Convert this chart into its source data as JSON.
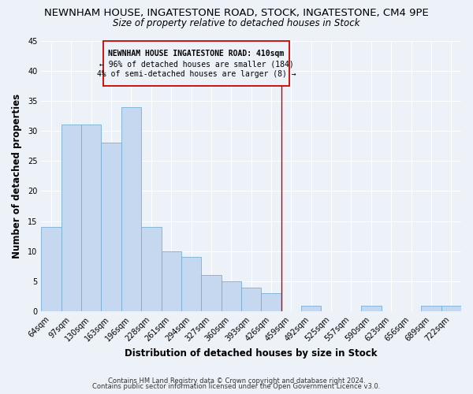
{
  "title": "NEWNHAM HOUSE, INGATESTONE ROAD, STOCK, INGATESTONE, CM4 9PE",
  "subtitle": "Size of property relative to detached houses in Stock",
  "xlabel": "Distribution of detached houses by size in Stock",
  "ylabel": "Number of detached properties",
  "categories": [
    "64sqm",
    "97sqm",
    "130sqm",
    "163sqm",
    "196sqm",
    "228sqm",
    "261sqm",
    "294sqm",
    "327sqm",
    "360sqm",
    "393sqm",
    "426sqm",
    "459sqm",
    "492sqm",
    "525sqm",
    "557sqm",
    "590sqm",
    "623sqm",
    "656sqm",
    "689sqm",
    "722sqm"
  ],
  "values": [
    14,
    31,
    31,
    28,
    34,
    14,
    10,
    9,
    6,
    5,
    4,
    3,
    0,
    1,
    0,
    0,
    1,
    0,
    0,
    1,
    1
  ],
  "bar_color": "#c5d8f0",
  "bar_edge_color": "#7aafd4",
  "vline_x_index": 11.5,
  "vline_color": "#cc0000",
  "annotation_line1": "NEWNHAM HOUSE INGATESTONE ROAD: 410sqm",
  "annotation_line2": "← 96% of detached houses are smaller (184)",
  "annotation_line3": "4% of semi-detached houses are larger (8) →",
  "annotation_box_color": "#cc0000",
  "ylim": [
    0,
    45
  ],
  "yticks": [
    0,
    5,
    10,
    15,
    20,
    25,
    30,
    35,
    40,
    45
  ],
  "footer1": "Contains HM Land Registry data © Crown copyright and database right 2024.",
  "footer2": "Contains public sector information licensed under the Open Government Licence v3.0.",
  "bg_color": "#edf2f9",
  "grid_color": "#ffffff",
  "title_fontsize": 9.5,
  "subtitle_fontsize": 8.5,
  "label_fontsize": 8.5,
  "tick_fontsize": 7,
  "annotation_fontsize": 7,
  "footer_fontsize": 6
}
